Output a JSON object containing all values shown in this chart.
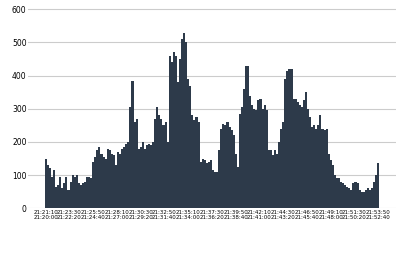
{
  "bar_color": "#2d3a4a",
  "background_color": "#ffffff",
  "plot_bg_color": "#ffffff",
  "grid_color": "#cccccc",
  "ylim": [
    0,
    620
  ],
  "yticks": [
    0,
    100,
    200,
    300,
    400,
    500,
    600
  ],
  "x_tick_labels_row1": [
    "21:21:10",
    "21:23:30",
    "21:25:50",
    "21:28:10",
    "21:30:30",
    "21:32:50",
    "21:35:10",
    "21:37:30",
    "21:39:50",
    "21:42:10",
    "21:44:30",
    "21:46:50",
    "21:49:10",
    "21:51:30",
    "21:53:50"
  ],
  "x_tick_labels_row2": [
    "21:20:00",
    "21:22:20",
    "21:24:40",
    "21:27:00",
    "21:29:20",
    "21:31:40",
    "21:34:00",
    "21:36:20",
    "21:38:40",
    "21:41:00",
    "21:43:20",
    "21:45:40",
    "21:48:00",
    "21:50:20",
    "21:52:40"
  ],
  "values": [
    150,
    130,
    120,
    95,
    115,
    65,
    70,
    95,
    60,
    75,
    95,
    55,
    80,
    100,
    95,
    100,
    75,
    70,
    75,
    80,
    95,
    95,
    90,
    140,
    155,
    175,
    185,
    165,
    155,
    150,
    180,
    175,
    165,
    160,
    130,
    170,
    165,
    180,
    185,
    195,
    200,
    305,
    385,
    260,
    270,
    180,
    185,
    200,
    180,
    190,
    195,
    190,
    200,
    270,
    305,
    280,
    270,
    250,
    260,
    200,
    460,
    440,
    470,
    460,
    380,
    450,
    510,
    530,
    500,
    390,
    370,
    280,
    265,
    275,
    260,
    140,
    150,
    145,
    135,
    140,
    145,
    115,
    110,
    110,
    175,
    240,
    255,
    250,
    260,
    245,
    235,
    220,
    165,
    125,
    285,
    305,
    360,
    430,
    430,
    340,
    310,
    300,
    295,
    325,
    330,
    300,
    310,
    295,
    175,
    175,
    160,
    175,
    165,
    200,
    240,
    260,
    390,
    415,
    420,
    420,
    330,
    330,
    320,
    310,
    305,
    325,
    350,
    300,
    275,
    245,
    250,
    240,
    250,
    280,
    240,
    235,
    240,
    165,
    145,
    130,
    100,
    90,
    90,
    80,
    75,
    70,
    65,
    60,
    55,
    75,
    80,
    75,
    55,
    50,
    50,
    55,
    60,
    55,
    60,
    80,
    100,
    135
  ]
}
